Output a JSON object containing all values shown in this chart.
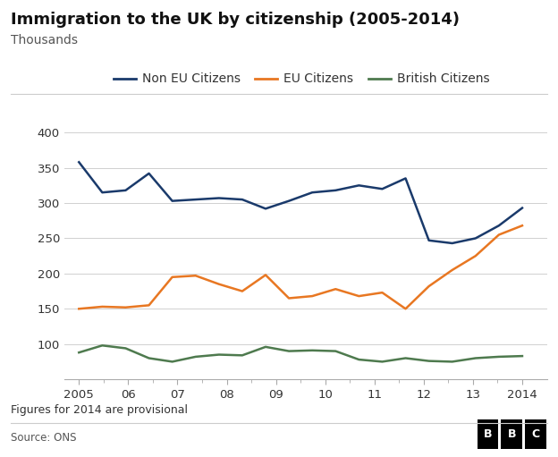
{
  "title": "Immigration to the UK by citizenship (2005-2014)",
  "ylabel": "Thousands",
  "footnote": "Figures for 2014 are provisional",
  "source": "Source: ONS",
  "x_labels": [
    "2005",
    "06",
    "07",
    "08",
    "09",
    "10",
    "11",
    "12",
    "13",
    "2014"
  ],
  "x_values": [
    0,
    1,
    2,
    3,
    4,
    5,
    6,
    7,
    8,
    9
  ],
  "series": {
    "Non EU Citizens": {
      "color": "#1a3a6b",
      "values": [
        358,
        315,
        318,
        342,
        303,
        305,
        307,
        305,
        292,
        303,
        315,
        318,
        325,
        320,
        335,
        247,
        243,
        250,
        268,
        293
      ]
    },
    "EU Citizens": {
      "color": "#e87722",
      "values": [
        150,
        153,
        152,
        155,
        195,
        197,
        185,
        175,
        198,
        165,
        168,
        178,
        168,
        173,
        150,
        182,
        205,
        225,
        255,
        268
      ]
    },
    "British Citizens": {
      "color": "#4e7a4e",
      "values": [
        88,
        98,
        94,
        80,
        75,
        82,
        85,
        84,
        96,
        90,
        91,
        90,
        78,
        75,
        80,
        76,
        75,
        80,
        82,
        83
      ]
    }
  },
  "series_order": [
    "Non EU Citizens",
    "EU Citizens",
    "British Citizens"
  ],
  "ylim": [
    50,
    400
  ],
  "yticks": [
    50,
    100,
    150,
    200,
    250,
    300,
    350,
    400
  ],
  "background_color": "#ffffff",
  "grid_color": "#d0d0d0",
  "title_fontsize": 13,
  "sub_fontsize": 10,
  "tick_fontsize": 9.5,
  "legend_fontsize": 10
}
